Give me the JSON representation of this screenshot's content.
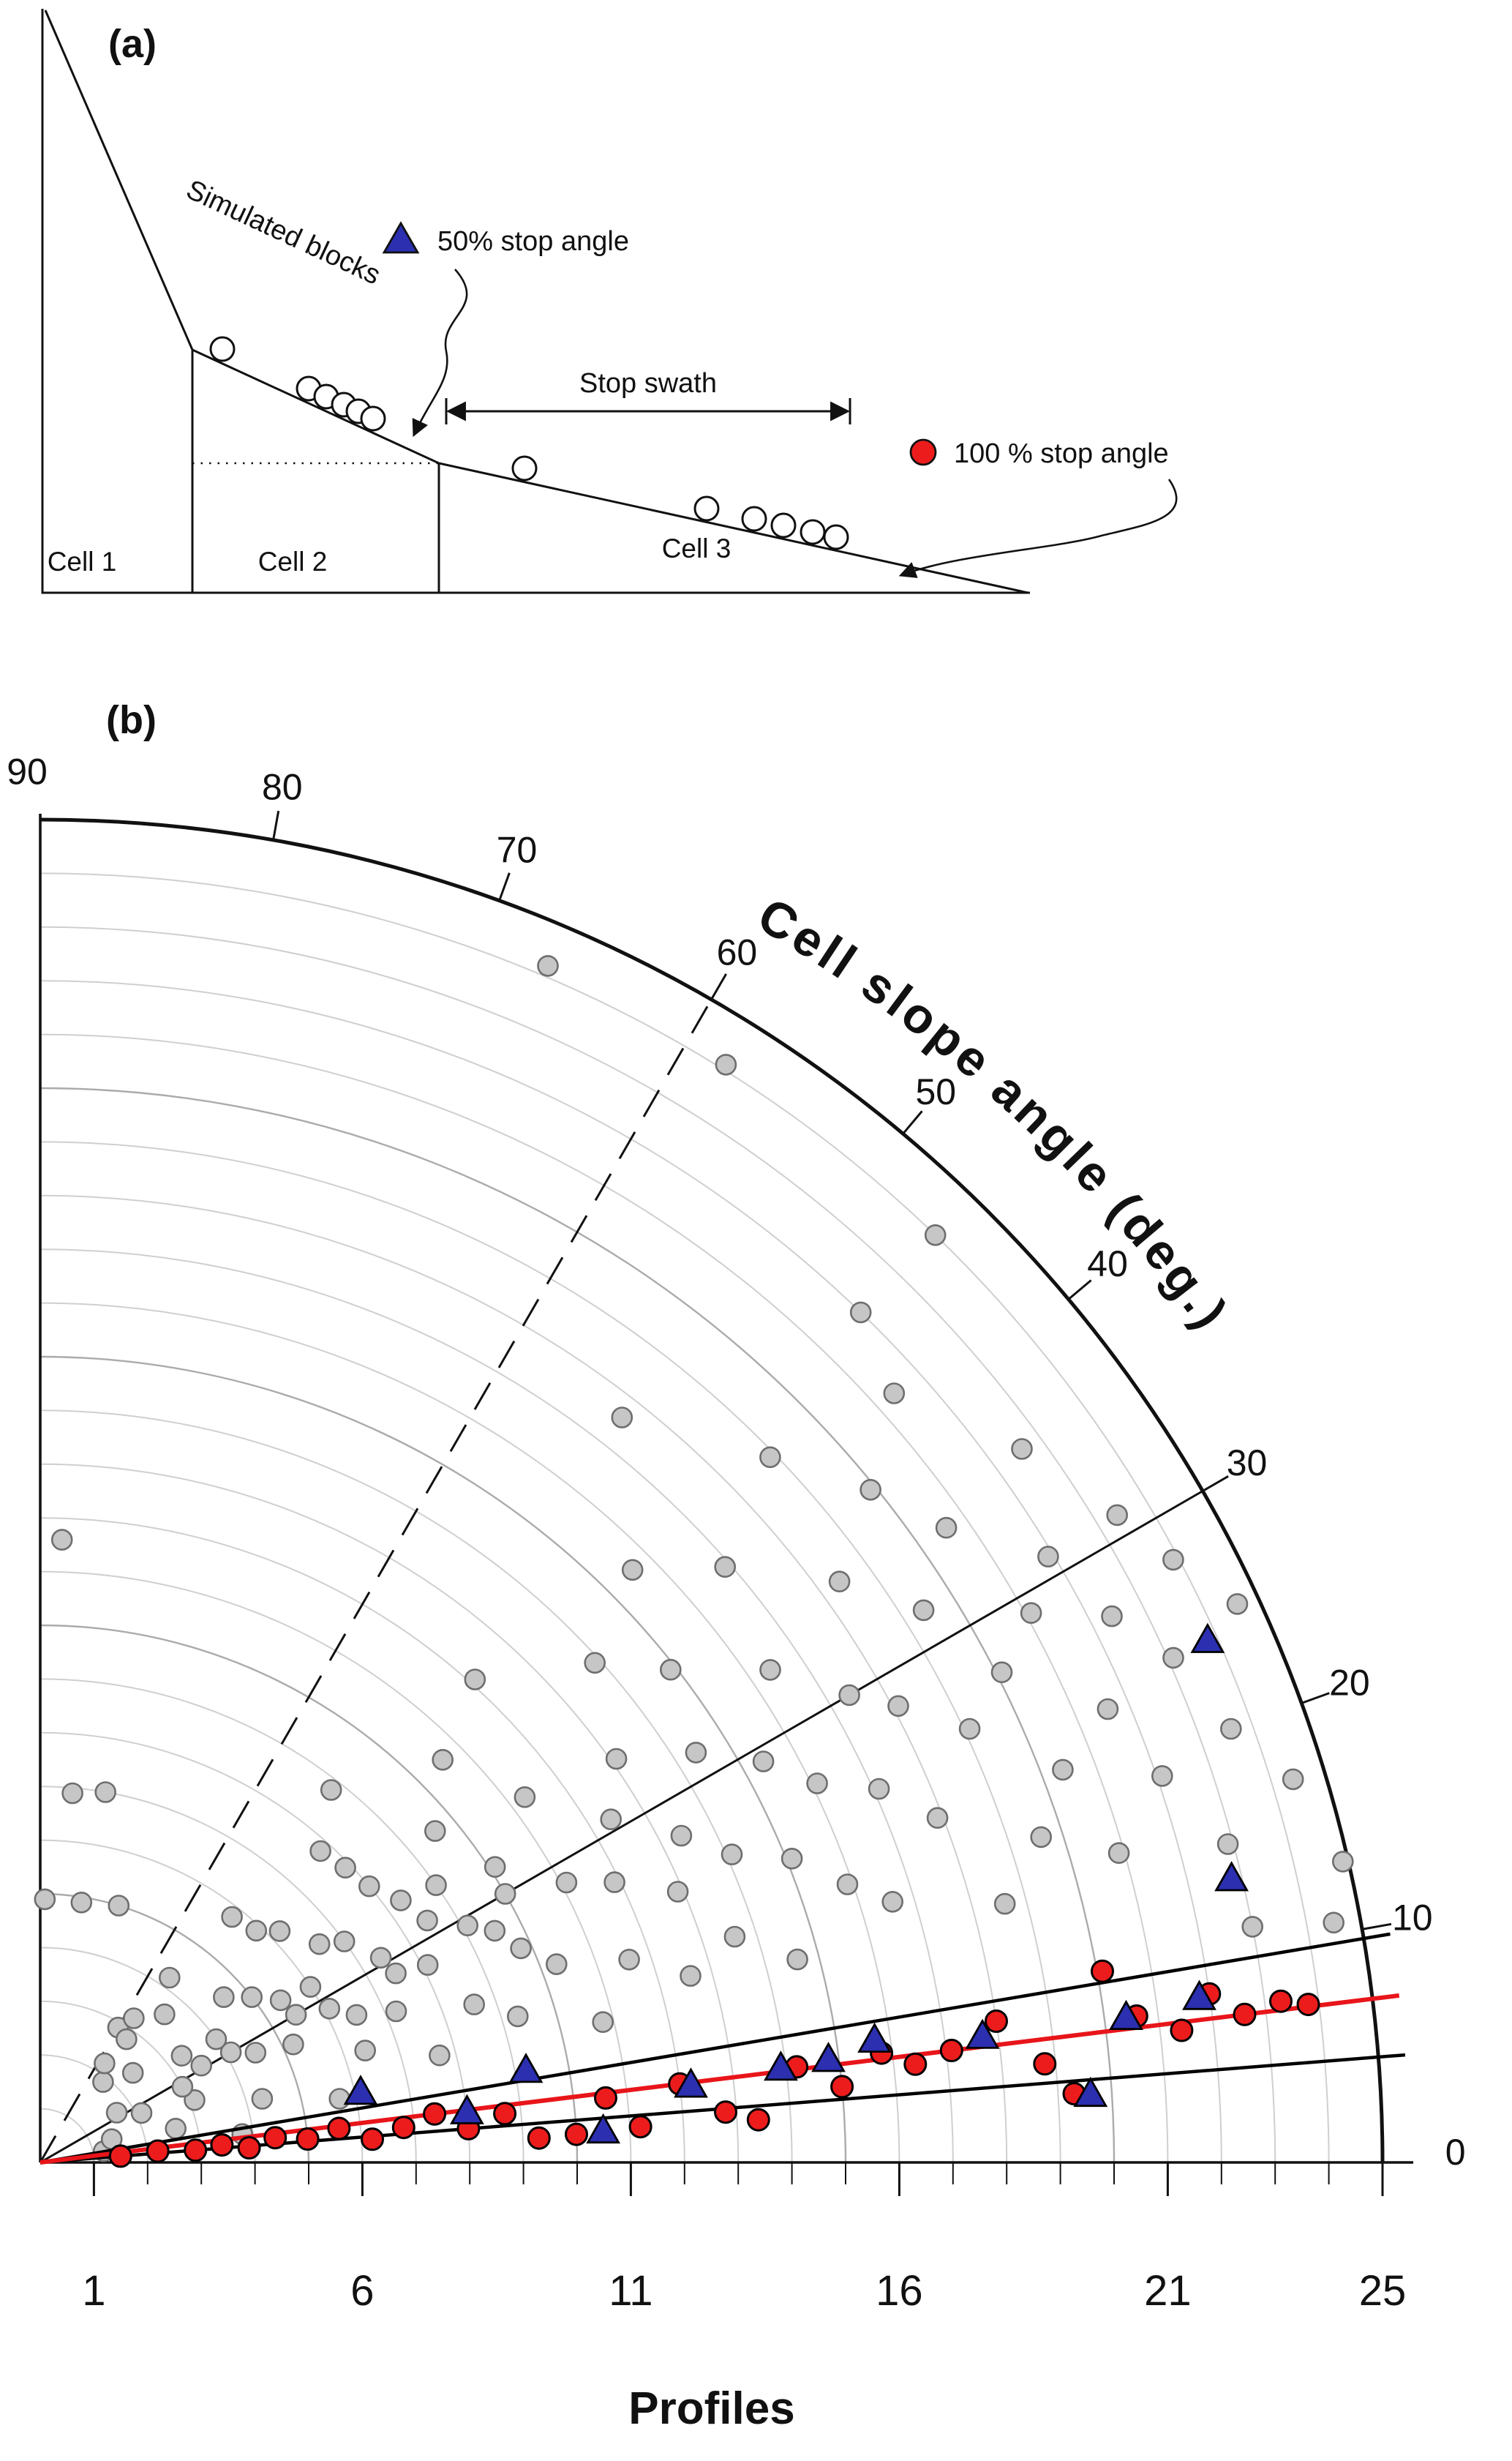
{
  "panel_a": {
    "label": "(a)",
    "simulated_blocks_label": "Simulated blocks",
    "stop_swath_label": "Stop swath",
    "legend": [
      {
        "marker": "triangle",
        "label": "50% stop angle"
      },
      {
        "marker": "circle",
        "label": "100 % stop angle"
      }
    ],
    "cell_labels": [
      "Cell 1",
      "Cell 2",
      "Cell 3"
    ],
    "block_positions": [
      [
        304,
        477
      ],
      [
        422,
        531
      ],
      [
        446,
        542
      ],
      [
        470,
        553
      ],
      [
        490,
        562
      ],
      [
        510,
        572
      ],
      [
        717,
        640
      ],
      [
        966,
        695
      ],
      [
        1031,
        709
      ],
      [
        1071,
        718
      ],
      [
        1111,
        727
      ],
      [
        1143,
        734
      ]
    ]
  },
  "panel_b": {
    "label": "(b)"
  },
  "chart_data": {
    "type": "scatter",
    "projection": "polar-quadrant",
    "angular_axis": {
      "label": "Cell slope angle (deg.)",
      "range_deg": [
        0,
        90
      ],
      "ticks": [
        90,
        80,
        70,
        60,
        50,
        40,
        30,
        20,
        10,
        0
      ]
    },
    "radial_axis": {
      "label": "Profiles",
      "range": [
        0,
        25
      ],
      "major_ticks": [
        1,
        6,
        11,
        16,
        21,
        25
      ],
      "minor_tick_step": 1
    },
    "reference_spokes": [
      {
        "angle_deg": 30,
        "style": "solid"
      },
      {
        "angle_deg": 60,
        "style": "dashed"
      }
    ],
    "reference_lines": [
      {
        "name": "stop-swath-upper",
        "angle_deg": 9.6,
        "color": "#000000"
      },
      {
        "name": "stop-swath-lower",
        "angle_deg": 4.5,
        "color": "#000000"
      },
      {
        "name": "mean-stop-angle",
        "angle_deg": 7.0,
        "color": "#e8151a"
      }
    ],
    "series": [
      {
        "name": "Simulated blocks",
        "marker": "circle",
        "fill": "#c6c6c6",
        "stroke": "#6e6e6e",
        "points": [
          [
            1.2,
            10
          ],
          [
            1.4,
            18
          ],
          [
            1.7,
            33
          ],
          [
            1.9,
            52
          ],
          [
            2.1,
            26
          ],
          [
            2.4,
            44
          ],
          [
            2.6,
            14
          ],
          [
            2.9,
            60
          ],
          [
            3.1,
            22
          ],
          [
            3.3,
            37
          ],
          [
            3.6,
            50
          ],
          [
            3.8,
            8
          ],
          [
            2.2,
            57
          ],
          [
            2.8,
            55
          ],
          [
            4.1,
            30
          ],
          [
            4.3,
            16
          ],
          [
            4.6,
            42
          ],
          [
            4.9,
            89
          ],
          [
            4.9,
            81
          ],
          [
            5.0,
            73
          ],
          [
            5.2,
            25
          ],
          [
            5.4,
            34
          ],
          [
            5.7,
            12
          ],
          [
            5.9,
            47
          ],
          [
            6.1,
            28
          ],
          [
            6.4,
            19
          ],
          [
            6.6,
            38
          ],
          [
            6.9,
            85
          ],
          [
            7.0,
            80
          ],
          [
            3.0,
            28
          ],
          [
            3.5,
            31
          ],
          [
            4.0,
            35
          ],
          [
            4.5,
            27
          ],
          [
            5.0,
            38
          ],
          [
            5.5,
            30
          ],
          [
            6.0,
            33
          ],
          [
            6.5,
            25
          ],
          [
            4.2,
            55
          ],
          [
            3.2,
            57
          ],
          [
            5.8,
            52
          ],
          [
            6.2,
            44
          ],
          [
            7.2,
            23
          ],
          [
            7.4,
            31
          ],
          [
            7.7,
            15
          ],
          [
            7.9,
            44
          ],
          [
            8.1,
            27
          ],
          [
            8.3,
            36
          ],
          [
            8.6,
            20
          ],
          [
            8.8,
            52
          ],
          [
            9.1,
            29
          ],
          [
            9.3,
            17
          ],
          [
            9.6,
            40
          ],
          [
            9.8,
            24
          ],
          [
            7.0,
            36
          ],
          [
            7.5,
            28
          ],
          [
            7.8,
            48
          ],
          [
            8.0,
            40
          ],
          [
            8.5,
            32
          ],
          [
            9.0,
            35
          ],
          [
            9.5,
            27
          ],
          [
            10.0,
            30
          ],
          [
            10.1,
            33
          ],
          [
            10.3,
            21
          ],
          [
            10.6,
            45
          ],
          [
            10.8,
            14
          ],
          [
            11.1,
            28
          ],
          [
            11.3,
            37
          ],
          [
            11.6,
            88
          ],
          [
            11.6,
            19
          ],
          [
            11.9,
            26
          ],
          [
            12.1,
            48
          ],
          [
            12.4,
            31
          ],
          [
            12.6,
            16
          ],
          [
            12.9,
            23
          ],
          [
            13.1,
            35
          ],
          [
            13.4,
            27
          ],
          [
            13.6,
            18
          ],
          [
            13.9,
            42
          ],
          [
            14.1,
            24
          ],
          [
            14.4,
            32
          ],
          [
            14.6,
            15
          ],
          [
            14.9,
            38
          ],
          [
            15.1,
            22
          ],
          [
            15.4,
            29
          ],
          [
            15.6,
            45
          ],
          [
            15.9,
            19
          ],
          [
            16.1,
            26
          ],
          [
            16.4,
            34
          ],
          [
            16.6,
            17
          ],
          [
            16.9,
            41
          ],
          [
            17.1,
            24
          ],
          [
            17.4,
            30
          ],
          [
            17.6,
            52
          ],
          [
            17.9,
            21
          ],
          [
            18.1,
            28
          ],
          [
            18.4,
            36
          ],
          [
            18.6,
            15
          ],
          [
            18.9,
            44
          ],
          [
            19.1,
            25
          ],
          [
            19.4,
            32
          ],
          [
            19.6,
            18
          ],
          [
            19.9,
            39
          ],
          [
            20.1,
            27
          ],
          [
            20.4,
            21
          ],
          [
            20.6,
            35
          ],
          [
            20.9,
            16
          ],
          [
            21.1,
            29
          ],
          [
            21.4,
            42
          ],
          [
            21.6,
            23
          ],
          [
            21.9,
            31
          ],
          [
            22.0,
            46
          ],
          [
            22.1,
            19
          ],
          [
            22.4,
            27
          ],
          [
            22.6,
            36
          ],
          [
            22.9,
            15
          ],
          [
            23.0,
            11
          ],
          [
            23.1,
            24
          ],
          [
            23.4,
            31
          ],
          [
            23.6,
            20
          ],
          [
            23.9,
            28
          ],
          [
            24.0,
            46
          ],
          [
            24.1,
            58
          ],
          [
            24.2,
            67
          ],
          [
            24.4,
            17
          ],
          [
            24.6,
            25
          ],
          [
            24.9,
            13
          ],
          [
            24.5,
            10.5
          ]
        ]
      },
      {
        "name": "100 % stop angle",
        "marker": "circle",
        "fill": "#ed1c1c",
        "stroke": "#000000",
        "points": [
          [
            1.5,
            4.5
          ],
          [
            2.2,
            5.5
          ],
          [
            2.9,
            4.5
          ],
          [
            3.4,
            5.5
          ],
          [
            3.9,
            4.0
          ],
          [
            4.4,
            6.0
          ],
          [
            5.0,
            5.0
          ],
          [
            5.6,
            6.5
          ],
          [
            6.2,
            4.0
          ],
          [
            6.8,
            5.5
          ],
          [
            7.4,
            7.0
          ],
          [
            8.0,
            4.5
          ],
          [
            8.7,
            6.0
          ],
          [
            9.3,
            2.8
          ],
          [
            10.0,
            3.0
          ],
          [
            10.6,
            6.5
          ],
          [
            11.2,
            3.4
          ],
          [
            12.0,
            7.0
          ],
          [
            12.8,
            4.2
          ],
          [
            13.4,
            3.4
          ],
          [
            14.2,
            7.2
          ],
          [
            15.0,
            5.4
          ],
          [
            15.8,
            7.4
          ],
          [
            16.4,
            6.4
          ],
          [
            17.1,
            7.0
          ],
          [
            18.0,
            8.4
          ],
          [
            18.8,
            5.6
          ],
          [
            19.3,
            3.8
          ],
          [
            20.1,
            10.2
          ],
          [
            20.6,
            7.6
          ],
          [
            21.4,
            6.6
          ],
          [
            22.0,
            8.2
          ],
          [
            22.6,
            7.0
          ],
          [
            23.3,
            7.4
          ],
          [
            23.8,
            7.1
          ]
        ]
      },
      {
        "name": "50% stop angle",
        "marker": "triangle",
        "fill": "#2b2fb0",
        "stroke": "#000000",
        "points": [
          [
            6.1,
            12
          ],
          [
            9.2,
            10.5
          ],
          [
            8.0,
            6.5
          ],
          [
            10.5,
            3.0
          ],
          [
            12.2,
            6.6
          ],
          [
            13.9,
            7.1
          ],
          [
            14.8,
            7.3
          ],
          [
            15.7,
            8.2
          ],
          [
            17.7,
            7.5
          ],
          [
            19.6,
            3.6
          ],
          [
            20.4,
            7.5
          ],
          [
            21.8,
            8.0
          ],
          [
            22.8,
            13.3
          ],
          [
            23.8,
            24.0
          ]
        ]
      }
    ]
  }
}
